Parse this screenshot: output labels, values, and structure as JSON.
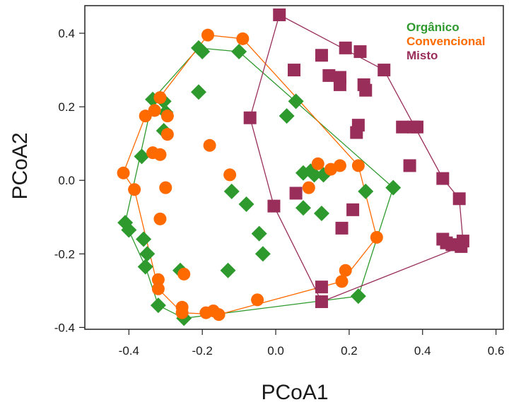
{
  "chart_data": {
    "type": "scatter",
    "xlabel": "PCoA1",
    "ylabel": "PCoA2",
    "xlim": [
      -0.52,
      0.62
    ],
    "ylim": [
      -0.405,
      0.475
    ],
    "x_ticks": [
      "-0.4",
      "-0.2",
      "0.0",
      "0.2",
      "0.4",
      "0.6"
    ],
    "y_ticks": [
      "0.4",
      "0.2",
      "0.0",
      "-0.2",
      "-0.4"
    ],
    "x_tick_values": [
      -0.4,
      -0.2,
      0.0,
      0.2,
      0.4,
      0.6
    ],
    "y_tick_values": [
      0.4,
      0.2,
      0.0,
      -0.2,
      -0.4
    ],
    "grid": false,
    "legend_position": "top-right",
    "series": [
      {
        "name": "Orgânico",
        "color": "#2e9a2e",
        "marker": "diamond",
        "points": [
          [
            -0.21,
            0.36
          ],
          [
            -0.1,
            0.35
          ],
          [
            -0.2,
            0.35
          ],
          [
            -0.335,
            0.22
          ],
          [
            -0.305,
            0.215
          ],
          [
            -0.21,
            0.24
          ],
          [
            -0.3,
            0.185
          ],
          [
            -0.305,
            0.135
          ],
          [
            -0.365,
            0.065
          ],
          [
            -0.41,
            -0.115
          ],
          [
            -0.4,
            -0.135
          ],
          [
            -0.36,
            -0.16
          ],
          [
            -0.35,
            -0.2
          ],
          [
            -0.355,
            -0.235
          ],
          [
            -0.26,
            -0.245
          ],
          [
            -0.32,
            -0.34
          ],
          [
            -0.25,
            -0.375
          ],
          [
            -0.12,
            -0.03
          ],
          [
            -0.08,
            -0.065
          ],
          [
            -0.13,
            -0.245
          ],
          [
            -0.045,
            -0.145
          ],
          [
            -0.035,
            -0.2
          ],
          [
            0.055,
            0.215
          ],
          [
            0.03,
            0.175
          ],
          [
            0.075,
            0.02
          ],
          [
            0.095,
            0.025
          ],
          [
            0.105,
            0.015
          ],
          [
            0.13,
            0.015
          ],
          [
            0.075,
            -0.075
          ],
          [
            0.125,
            -0.09
          ],
          [
            0.245,
            -0.03
          ],
          [
            0.32,
            -0.02
          ],
          [
            0.225,
            -0.315
          ]
        ]
      },
      {
        "name": "Convencional",
        "color": "#ff6a00",
        "marker": "circle",
        "points": [
          [
            -0.185,
            0.395
          ],
          [
            -0.09,
            0.385
          ],
          [
            -0.315,
            0.225
          ],
          [
            -0.33,
            0.19
          ],
          [
            -0.355,
            0.175
          ],
          [
            -0.295,
            0.175
          ],
          [
            -0.295,
            0.125
          ],
          [
            -0.18,
            0.095
          ],
          [
            -0.335,
            0.075
          ],
          [
            -0.315,
            0.07
          ],
          [
            -0.415,
            0.02
          ],
          [
            -0.125,
            0.015
          ],
          [
            -0.385,
            -0.025
          ],
          [
            -0.3,
            -0.02
          ],
          [
            -0.315,
            -0.105
          ],
          [
            -0.32,
            -0.27
          ],
          [
            -0.32,
            -0.295
          ],
          [
            -0.25,
            -0.255
          ],
          [
            -0.255,
            -0.345
          ],
          [
            -0.255,
            -0.36
          ],
          [
            -0.19,
            -0.36
          ],
          [
            -0.17,
            -0.355
          ],
          [
            -0.155,
            -0.365
          ],
          [
            -0.05,
            -0.325
          ],
          [
            0.115,
            0.045
          ],
          [
            0.15,
            0.03
          ],
          [
            0.175,
            0.04
          ],
          [
            0.225,
            0.04
          ],
          [
            0.09,
            -0.02
          ],
          [
            0.275,
            -0.155
          ],
          [
            0.19,
            -0.245
          ],
          [
            0.18,
            -0.275
          ]
        ]
      },
      {
        "name": "Misto",
        "color": "#992e5a",
        "marker": "square",
        "points": [
          [
            0.01,
            0.45
          ],
          [
            0.19,
            0.36
          ],
          [
            0.23,
            0.35
          ],
          [
            0.125,
            0.34
          ],
          [
            0.295,
            0.3
          ],
          [
            0.05,
            0.3
          ],
          [
            0.145,
            0.285
          ],
          [
            0.175,
            0.28
          ],
          [
            0.175,
            0.26
          ],
          [
            0.24,
            0.26
          ],
          [
            0.245,
            0.245
          ],
          [
            -0.07,
            0.17
          ],
          [
            0.225,
            0.15
          ],
          [
            0.22,
            0.13
          ],
          [
            0.345,
            0.145
          ],
          [
            0.375,
            0.145
          ],
          [
            0.385,
            0.145
          ],
          [
            0.365,
            0.04
          ],
          [
            0.455,
            0.005
          ],
          [
            0.5,
            -0.05
          ],
          [
            -0.005,
            -0.07
          ],
          [
            0.055,
            -0.035
          ],
          [
            0.21,
            -0.08
          ],
          [
            0.18,
            -0.13
          ],
          [
            0.455,
            -0.16
          ],
          [
            0.465,
            -0.17
          ],
          [
            0.48,
            -0.175
          ],
          [
            0.49,
            -0.175
          ],
          [
            0.505,
            -0.18
          ],
          [
            0.51,
            -0.165
          ],
          [
            0.125,
            -0.29
          ],
          [
            0.125,
            -0.33
          ]
        ]
      }
    ],
    "hulls": [
      {
        "series": "Orgânico",
        "points": [
          [
            -0.21,
            0.36
          ],
          [
            -0.1,
            0.35
          ],
          [
            0.32,
            -0.02
          ],
          [
            0.225,
            -0.315
          ],
          [
            -0.25,
            -0.375
          ],
          [
            -0.32,
            -0.34
          ],
          [
            -0.355,
            -0.235
          ],
          [
            -0.41,
            -0.115
          ],
          [
            -0.335,
            0.22
          ]
        ]
      },
      {
        "series": "Convencional",
        "points": [
          [
            -0.185,
            0.395
          ],
          [
            -0.09,
            0.385
          ],
          [
            0.225,
            0.04
          ],
          [
            0.275,
            -0.155
          ],
          [
            0.18,
            -0.275
          ],
          [
            -0.155,
            -0.365
          ],
          [
            -0.255,
            -0.36
          ],
          [
            -0.32,
            -0.295
          ],
          [
            -0.385,
            -0.025
          ],
          [
            -0.415,
            0.02
          ],
          [
            -0.355,
            0.175
          ]
        ]
      },
      {
        "series": "Misto",
        "points": [
          [
            0.01,
            0.45
          ],
          [
            0.295,
            0.3
          ],
          [
            0.455,
            0.005
          ],
          [
            0.5,
            -0.05
          ],
          [
            0.51,
            -0.165
          ],
          [
            0.505,
            -0.18
          ],
          [
            0.125,
            -0.33
          ],
          [
            -0.005,
            -0.07
          ],
          [
            -0.07,
            0.17
          ]
        ]
      }
    ]
  }
}
